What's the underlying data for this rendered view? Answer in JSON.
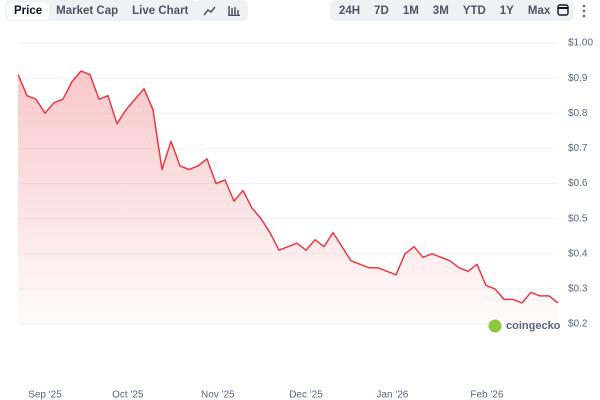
{
  "toolbar": {
    "tabs": [
      "Price",
      "Market Cap",
      "Live Chart"
    ],
    "selected_tab": 0,
    "ranges": [
      "24H",
      "7D",
      "1M",
      "3M",
      "YTD",
      "1Y",
      "Max"
    ]
  },
  "chart_data": {
    "type": "line",
    "watermark": "coingecko",
    "color": "#ea3943",
    "grid": true,
    "xlim": [
      0,
      60
    ],
    "xticks": [
      {
        "value": 3,
        "label": "Sep '25"
      },
      {
        "value": 12.2,
        "label": "Oct '25"
      },
      {
        "value": 22.2,
        "label": "Nov '25"
      },
      {
        "value": 32,
        "label": "Dec '25"
      },
      {
        "value": 41.6,
        "label": "Jan '26"
      },
      {
        "value": 52.1,
        "label": "Feb '26"
      }
    ],
    "ylim": [
      0.2,
      1.0
    ],
    "yticks": [
      {
        "value": 0.2,
        "label": "$0.2"
      },
      {
        "value": 0.3,
        "label": "$0.3"
      },
      {
        "value": 0.4,
        "label": "$0.4"
      },
      {
        "value": 0.5,
        "label": "$0.5"
      },
      {
        "value": 0.6,
        "label": "$0.6"
      },
      {
        "value": 0.7,
        "label": "$0.7"
      },
      {
        "value": 0.8,
        "label": "$0.8"
      },
      {
        "value": 0.9,
        "label": "$0.9"
      },
      {
        "value": 1.0,
        "label": "$1.00"
      }
    ],
    "x": [
      0,
      1,
      2,
      3,
      4,
      5,
      6,
      7,
      8,
      9,
      10,
      11,
      12,
      13,
      14,
      15,
      16,
      17,
      18,
      19,
      20,
      21,
      22,
      23,
      24,
      25,
      26,
      27,
      28,
      29,
      30,
      31,
      32,
      33,
      34,
      35,
      36,
      37,
      38,
      39,
      40,
      41,
      42,
      43,
      44,
      45,
      46,
      47,
      48,
      49,
      50,
      51,
      52,
      53,
      54,
      55,
      56,
      57,
      58,
      59,
      60
    ],
    "values": [
      0.91,
      0.85,
      0.84,
      0.8,
      0.83,
      0.84,
      0.89,
      0.92,
      0.91,
      0.84,
      0.85,
      0.77,
      0.81,
      0.84,
      0.87,
      0.81,
      0.64,
      0.72,
      0.65,
      0.64,
      0.65,
      0.67,
      0.6,
      0.61,
      0.55,
      0.58,
      0.53,
      0.5,
      0.46,
      0.41,
      0.42,
      0.43,
      0.41,
      0.44,
      0.42,
      0.46,
      0.42,
      0.38,
      0.37,
      0.36,
      0.36,
      0.35,
      0.34,
      0.4,
      0.42,
      0.39,
      0.4,
      0.39,
      0.38,
      0.36,
      0.35,
      0.37,
      0.31,
      0.3,
      0.27,
      0.27,
      0.26,
      0.29,
      0.28,
      0.28,
      0.26
    ]
  }
}
